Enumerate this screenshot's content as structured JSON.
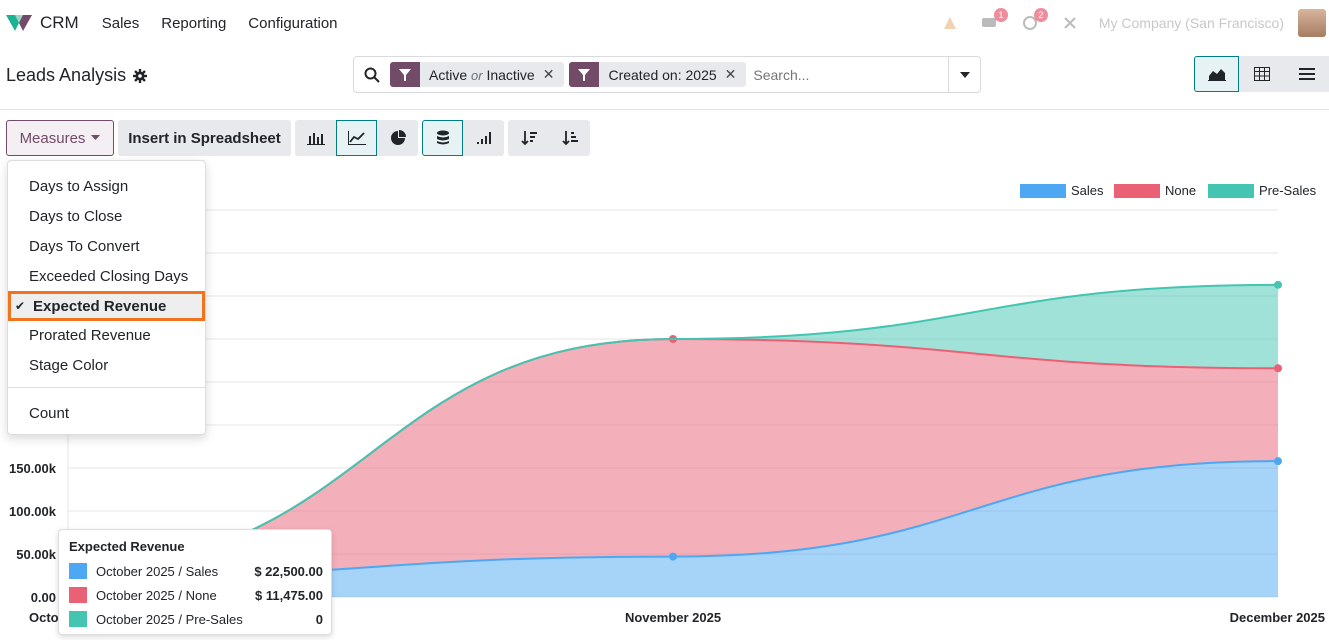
{
  "navbar": {
    "app_name": "CRM",
    "menu": [
      "Sales",
      "Reporting",
      "Configuration"
    ],
    "activity_badge": "1",
    "message_badge": "2",
    "company": "My Company (San Francisco)"
  },
  "control": {
    "title": "Leads Analysis",
    "facets": [
      {
        "part1": "Active",
        "or": "or",
        "part2": "Inactive"
      },
      {
        "label": "Created on: 2025"
      }
    ],
    "search_placeholder": "Search..."
  },
  "toolbar": {
    "measures_label": "Measures",
    "insert_label": "Insert in Spreadsheet"
  },
  "measures_menu": {
    "items": [
      "Days to Assign",
      "Days to Close",
      "Days To Convert",
      "Exceeded Closing Days",
      "Expected Revenue",
      "Prorated Revenue",
      "Stage Color"
    ],
    "selected": "Expected Revenue",
    "count_label": "Count"
  },
  "chart_data": {
    "type": "area",
    "stacked": true,
    "x": [
      "October 2025",
      "November 2025",
      "December 2025"
    ],
    "series": [
      {
        "name": "Sales",
        "color": "#4ea7f2",
        "values": [
          22500,
          47000,
          158000
        ]
      },
      {
        "name": "None",
        "color": "#ea6175",
        "values": [
          11475,
          253000,
          108000
        ]
      },
      {
        "name": "Pre-Sales",
        "color": "#43c5b1",
        "values": [
          0,
          0,
          97000
        ]
      }
    ],
    "yticks": [
      "0.00",
      "50.00k",
      "100.00k",
      "150.00k"
    ],
    "ylim": [
      0,
      450000
    ],
    "legend": "top-right",
    "grid": true
  },
  "tooltip": {
    "title": "Expected Revenue",
    "rows": [
      {
        "label": "October 2025 / Sales",
        "value": "$ 22,500.00",
        "color": "#4ea7f2"
      },
      {
        "label": "October 2025 / None",
        "value": "$ 11,475.00",
        "color": "#ea6175"
      },
      {
        "label": "October 2025 / Pre-Sales",
        "value": "0",
        "color": "#43c5b1"
      }
    ]
  }
}
